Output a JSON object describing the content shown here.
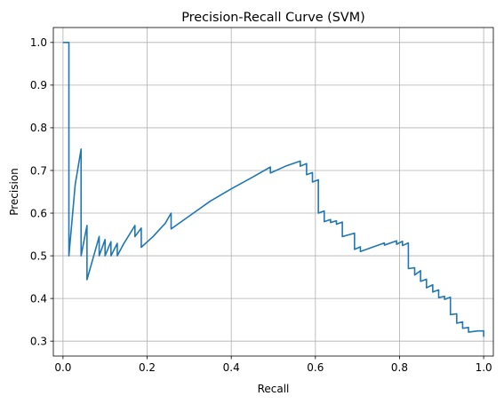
{
  "chart_data": {
    "type": "line",
    "title": "Precision-Recall Curve (SVM)",
    "xlabel": "Recall",
    "ylabel": "Precision",
    "xlim": [
      -0.023,
      1.023
    ],
    "ylim": [
      0.265,
      1.035
    ],
    "xticks": [
      0.0,
      0.2,
      0.4,
      0.6,
      0.8,
      1.0
    ],
    "xtick_labels": [
      "0.0",
      "0.2",
      "0.4",
      "0.6",
      "0.8",
      "1.0"
    ],
    "yticks": [
      0.3,
      0.4,
      0.5,
      0.6,
      0.7,
      0.8,
      0.9,
      1.0
    ],
    "ytick_labels": [
      "0.3",
      "0.4",
      "0.5",
      "0.6",
      "0.7",
      "0.8",
      "0.9",
      "1.0"
    ],
    "grid": true,
    "series": [
      {
        "color": "#1f77b4",
        "points": [
          [
            0.0,
            1.0
          ],
          [
            0.014,
            1.0
          ],
          [
            0.014,
            0.5
          ],
          [
            0.029,
            0.667
          ],
          [
            0.043,
            0.75
          ],
          [
            0.043,
            0.5
          ],
          [
            0.057,
            0.571
          ],
          [
            0.057,
            0.444
          ],
          [
            0.086,
            0.545
          ],
          [
            0.086,
            0.5
          ],
          [
            0.1,
            0.538
          ],
          [
            0.1,
            0.5
          ],
          [
            0.114,
            0.533
          ],
          [
            0.114,
            0.5
          ],
          [
            0.129,
            0.529
          ],
          [
            0.129,
            0.5
          ],
          [
            0.143,
            0.526
          ],
          [
            0.171,
            0.571
          ],
          [
            0.171,
            0.545
          ],
          [
            0.186,
            0.565
          ],
          [
            0.186,
            0.52
          ],
          [
            0.214,
            0.545
          ],
          [
            0.243,
            0.576
          ],
          [
            0.257,
            0.6
          ],
          [
            0.257,
            0.563
          ],
          [
            0.3,
            0.593
          ],
          [
            0.35,
            0.628
          ],
          [
            0.4,
            0.657
          ],
          [
            0.45,
            0.684
          ],
          [
            0.493,
            0.708
          ],
          [
            0.493,
            0.694
          ],
          [
            0.529,
            0.71
          ],
          [
            0.564,
            0.722
          ],
          [
            0.564,
            0.71
          ],
          [
            0.579,
            0.716
          ],
          [
            0.579,
            0.69
          ],
          [
            0.593,
            0.695
          ],
          [
            0.593,
            0.673
          ],
          [
            0.607,
            0.678
          ],
          [
            0.607,
            0.6
          ],
          [
            0.621,
            0.605
          ],
          [
            0.621,
            0.58
          ],
          [
            0.636,
            0.585
          ],
          [
            0.636,
            0.578
          ],
          [
            0.65,
            0.582
          ],
          [
            0.65,
            0.574
          ],
          [
            0.664,
            0.579
          ],
          [
            0.664,
            0.545
          ],
          [
            0.693,
            0.553
          ],
          [
            0.693,
            0.515
          ],
          [
            0.707,
            0.521
          ],
          [
            0.707,
            0.51
          ],
          [
            0.764,
            0.53
          ],
          [
            0.764,
            0.525
          ],
          [
            0.793,
            0.535
          ],
          [
            0.793,
            0.527
          ],
          [
            0.807,
            0.534
          ],
          [
            0.807,
            0.524
          ],
          [
            0.821,
            0.53
          ],
          [
            0.821,
            0.47
          ],
          [
            0.836,
            0.472
          ],
          [
            0.836,
            0.455
          ],
          [
            0.85,
            0.465
          ],
          [
            0.85,
            0.44
          ],
          [
            0.864,
            0.445
          ],
          [
            0.864,
            0.425
          ],
          [
            0.879,
            0.432
          ],
          [
            0.879,
            0.415
          ],
          [
            0.893,
            0.42
          ],
          [
            0.893,
            0.402
          ],
          [
            0.907,
            0.405
          ],
          [
            0.907,
            0.398
          ],
          [
            0.921,
            0.403
          ],
          [
            0.921,
            0.362
          ],
          [
            0.936,
            0.364
          ],
          [
            0.936,
            0.342
          ],
          [
            0.95,
            0.345
          ],
          [
            0.95,
            0.33
          ],
          [
            0.964,
            0.332
          ],
          [
            0.964,
            0.321
          ],
          [
            0.986,
            0.324
          ],
          [
            1.0,
            0.324
          ],
          [
            1.0,
            0.31
          ]
        ]
      }
    ]
  }
}
